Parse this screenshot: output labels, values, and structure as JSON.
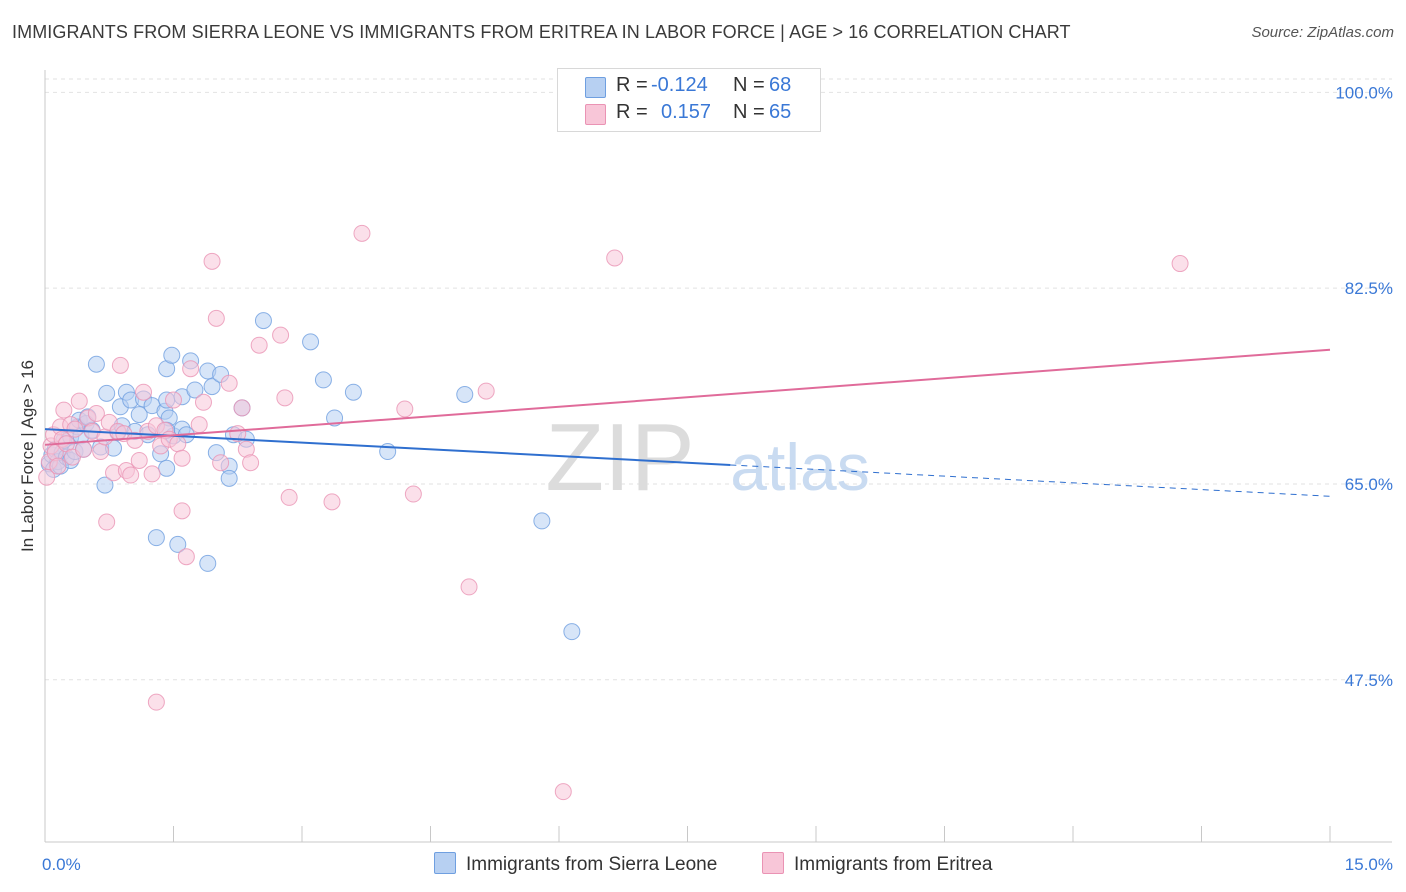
{
  "chart_data": {
    "type": "scatter",
    "title": "IMMIGRANTS FROM SIERRA LEONE VS IMMIGRANTS FROM ERITREA IN LABOR FORCE | AGE > 16 CORRELATION CHART",
    "source": "Source: ZipAtlas.com",
    "ylabel": "In Labor Force | Age > 16",
    "xlabel": "",
    "xlim": [
      0,
      15
    ],
    "ylim": [
      33,
      102
    ],
    "x_tick_labels": [
      {
        "value": 0,
        "label": "0.0%"
      },
      {
        "value": 15,
        "label": "15.0%"
      }
    ],
    "y_tick_labels": [
      {
        "value": 100,
        "label": "100.0%"
      },
      {
        "value": 82.5,
        "label": "82.5%"
      },
      {
        "value": 65,
        "label": "65.0%"
      },
      {
        "value": 47.5,
        "label": "47.5%"
      }
    ],
    "watermark": {
      "zip": "ZIP",
      "atlas": "atlas"
    },
    "legend": {
      "r_label": "R =",
      "n_label": "N =",
      "entries": [
        {
          "name": "Immigrants from Sierra Leone",
          "r": "-0.124",
          "n": "68"
        },
        {
          "name": "Immigrants from Eritrea",
          "r": "0.157",
          "n": "65"
        }
      ]
    },
    "series": [
      {
        "name": "Immigrants from Sierra Leone",
        "color": "#6f9fe0",
        "fill": "#b7d0f2",
        "trend": {
          "x0": 0,
          "y0": 69.9,
          "x1": 8.0,
          "y1": 66.7,
          "dash_to_x": 15,
          "dash_to_y": 63.9
        },
        "points": [
          [
            0.05,
            66.8
          ],
          [
            0.08,
            67.6
          ],
          [
            0.1,
            66.3
          ],
          [
            0.12,
            68.1
          ],
          [
            0.15,
            67.0
          ],
          [
            0.18,
            66.6
          ],
          [
            0.2,
            67.8
          ],
          [
            0.22,
            68.9
          ],
          [
            0.25,
            67.4
          ],
          [
            0.3,
            69.2
          ],
          [
            0.3,
            67.1
          ],
          [
            0.35,
            67.9
          ],
          [
            0.38,
            70.1
          ],
          [
            0.4,
            70.7
          ],
          [
            0.42,
            69.3
          ],
          [
            0.45,
            68.1
          ],
          [
            0.48,
            70.4
          ],
          [
            0.5,
            71.0
          ],
          [
            0.55,
            69.8
          ],
          [
            0.6,
            75.7
          ],
          [
            0.65,
            68.3
          ],
          [
            0.7,
            64.9
          ],
          [
            0.72,
            73.1
          ],
          [
            0.8,
            68.2
          ],
          [
            0.85,
            69.6
          ],
          [
            0.88,
            71.9
          ],
          [
            0.9,
            70.2
          ],
          [
            0.95,
            73.2
          ],
          [
            1.0,
            72.5
          ],
          [
            1.05,
            69.7
          ],
          [
            1.1,
            71.2
          ],
          [
            1.15,
            72.6
          ],
          [
            1.2,
            69.4
          ],
          [
            1.25,
            72.0
          ],
          [
            1.3,
            60.2
          ],
          [
            1.35,
            67.7
          ],
          [
            1.4,
            71.5
          ],
          [
            1.45,
            70.9
          ],
          [
            1.5,
            69.3
          ],
          [
            1.6,
            69.9
          ],
          [
            1.42,
            72.5
          ],
          [
            1.42,
            69.8
          ],
          [
            1.42,
            66.4
          ],
          [
            1.42,
            75.3
          ],
          [
            1.48,
            76.5
          ],
          [
            1.55,
            59.6
          ],
          [
            1.6,
            72.8
          ],
          [
            1.65,
            69.4
          ],
          [
            1.7,
            76.0
          ],
          [
            1.75,
            73.4
          ],
          [
            1.9,
            57.9
          ],
          [
            1.9,
            75.1
          ],
          [
            1.95,
            73.7
          ],
          [
            2.0,
            67.8
          ],
          [
            2.05,
            74.8
          ],
          [
            2.15,
            66.6
          ],
          [
            2.15,
            65.5
          ],
          [
            2.2,
            69.4
          ],
          [
            2.3,
            71.8
          ],
          [
            2.35,
            69.0
          ],
          [
            2.55,
            79.6
          ],
          [
            3.1,
            77.7
          ],
          [
            3.25,
            74.3
          ],
          [
            3.38,
            70.9
          ],
          [
            3.6,
            73.2
          ],
          [
            4.0,
            67.9
          ],
          [
            4.9,
            73.0
          ],
          [
            5.8,
            61.7
          ],
          [
            6.15,
            51.8
          ]
        ]
      },
      {
        "name": "Immigrants from Eritrea",
        "color": "#ea93b4",
        "fill": "#f8c6d8",
        "trend": {
          "x0": 0,
          "y0": 68.5,
          "x1": 15,
          "y1": 77.0
        },
        "points": [
          [
            0.02,
            65.6
          ],
          [
            0.05,
            67.0
          ],
          [
            0.07,
            68.4
          ],
          [
            0.1,
            69.4
          ],
          [
            0.12,
            67.8
          ],
          [
            0.15,
            66.6
          ],
          [
            0.18,
            70.1
          ],
          [
            0.2,
            69.0
          ],
          [
            0.22,
            71.6
          ],
          [
            0.25,
            68.6
          ],
          [
            0.3,
            70.3
          ],
          [
            0.32,
            67.4
          ],
          [
            0.35,
            69.9
          ],
          [
            0.4,
            72.4
          ],
          [
            0.45,
            68.1
          ],
          [
            0.5,
            70.9
          ],
          [
            0.55,
            69.7
          ],
          [
            0.6,
            71.3
          ],
          [
            0.65,
            67.9
          ],
          [
            0.7,
            69.2
          ],
          [
            0.72,
            61.6
          ],
          [
            0.75,
            70.5
          ],
          [
            0.8,
            66.0
          ],
          [
            0.85,
            69.7
          ],
          [
            0.88,
            75.6
          ],
          [
            0.92,
            69.5
          ],
          [
            0.95,
            66.2
          ],
          [
            1.0,
            65.8
          ],
          [
            1.05,
            68.9
          ],
          [
            1.1,
            67.1
          ],
          [
            1.15,
            73.2
          ],
          [
            1.2,
            69.7
          ],
          [
            1.25,
            65.9
          ],
          [
            1.3,
            70.2
          ],
          [
            1.35,
            68.4
          ],
          [
            1.4,
            69.8
          ],
          [
            1.45,
            69.0
          ],
          [
            1.5,
            72.5
          ],
          [
            1.55,
            68.6
          ],
          [
            1.6,
            67.3
          ],
          [
            1.6,
            62.6
          ],
          [
            1.65,
            58.5
          ],
          [
            1.3,
            45.5
          ],
          [
            1.7,
            75.3
          ],
          [
            1.8,
            70.3
          ],
          [
            1.85,
            72.3
          ],
          [
            1.95,
            84.9
          ],
          [
            2.0,
            79.8
          ],
          [
            2.05,
            66.9
          ],
          [
            2.15,
            74.0
          ],
          [
            2.25,
            69.5
          ],
          [
            2.3,
            71.8
          ],
          [
            2.35,
            68.1
          ],
          [
            2.4,
            66.9
          ],
          [
            2.5,
            77.4
          ],
          [
            2.75,
            78.3
          ],
          [
            2.8,
            72.7
          ],
          [
            2.85,
            63.8
          ],
          [
            3.35,
            63.4
          ],
          [
            3.7,
            87.4
          ],
          [
            4.2,
            71.7
          ],
          [
            4.3,
            64.1
          ],
          [
            5.15,
            73.3
          ],
          [
            4.95,
            55.8
          ],
          [
            6.05,
            37.5
          ],
          [
            6.65,
            85.2
          ],
          [
            13.25,
            84.7
          ]
        ]
      }
    ]
  }
}
